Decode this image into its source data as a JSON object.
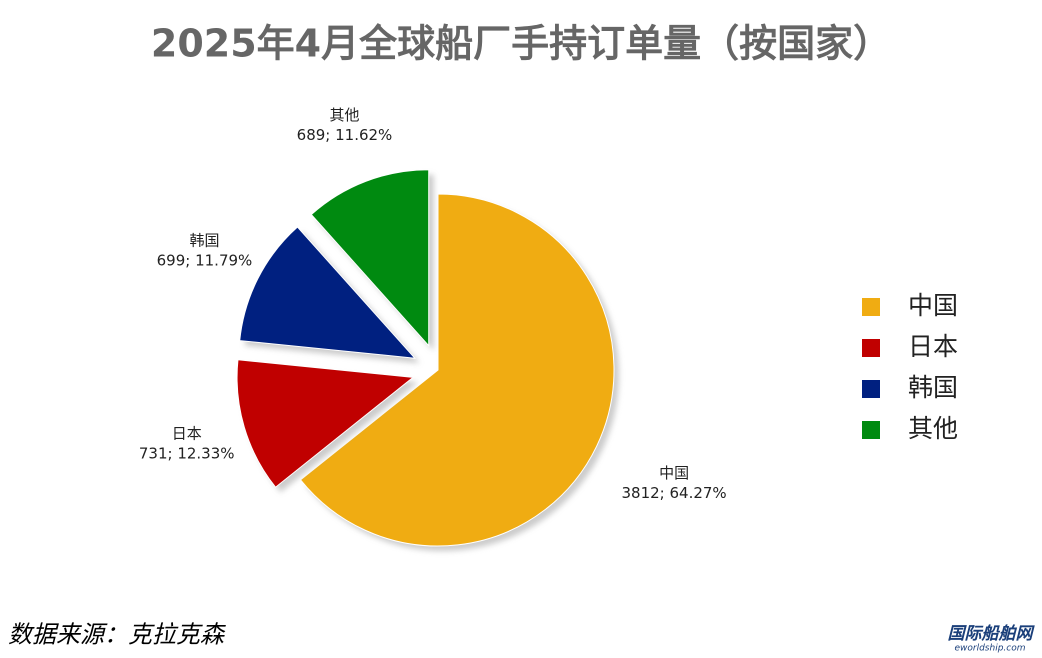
{
  "chart_data": {
    "type": "pie",
    "title": "2025年4月全球船厂手持订单量（按国家）",
    "categories": [
      "中国",
      "日本",
      "韩国",
      "其他"
    ],
    "values": [
      3812,
      731,
      699,
      689
    ],
    "value_labels": [
      "3812; 64.27%",
      "731; 12.33%",
      "699; 11.79%",
      "689; 11.62%"
    ],
    "colors": [
      "#f0ac12",
      "#c00000",
      "#002080",
      "#008a10"
    ],
    "legend": "right",
    "source": "数据来源：克拉克森",
    "watermark": [
      "国际船舶网",
      "eworldship.com"
    ]
  }
}
